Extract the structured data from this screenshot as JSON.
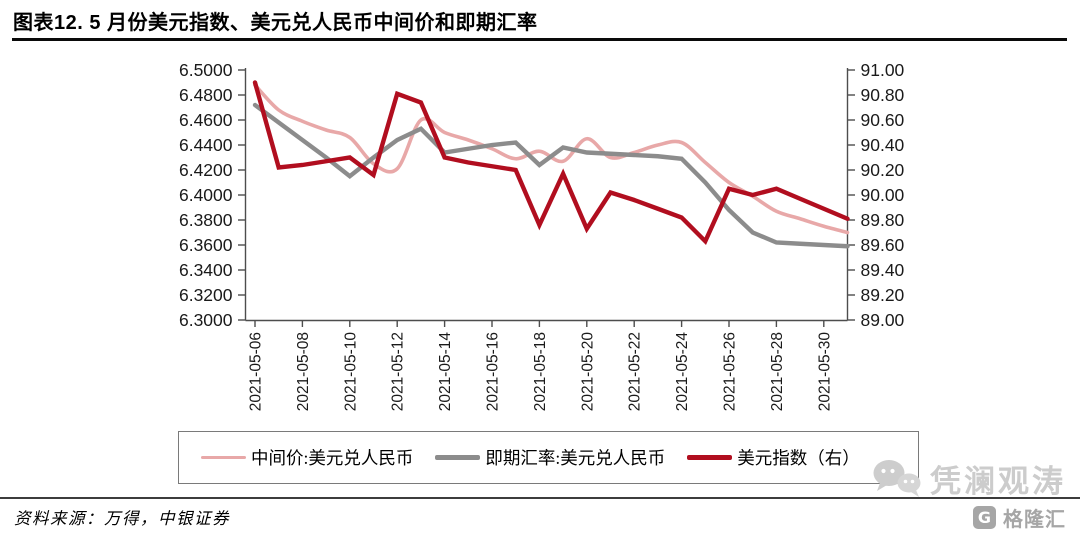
{
  "header": {
    "title": "图表12. 5 月份美元指数、美元兑人民币中间价和即期汇率"
  },
  "footer": {
    "source_label": "资料来源：万得，中银证券"
  },
  "watermark": {
    "brand": "凭澜观涛",
    "logo_letter": "G",
    "logo_text": "格隆汇",
    "brand_color": "#cccccc",
    "logo_color": "#a6a6a6"
  },
  "legend": [
    {
      "label": "中间价:美元兑人民币",
      "color": "#E8A8A8"
    },
    {
      "label": "即期汇率:美元兑人民币",
      "color": "#8C8C8C"
    },
    {
      "label": "美元指数（右）",
      "color": "#B10E1F"
    }
  ],
  "chart_data": {
    "type": "line",
    "title": "图表12. 5 月份美元指数、美元兑人民币中间价和即期汇率",
    "legend_position": "bottom",
    "grid": false,
    "dates": [
      "2021-05-06",
      "2021-05-07",
      "2021-05-08",
      "2021-05-09",
      "2021-05-10",
      "2021-05-11",
      "2021-05-12",
      "2021-05-13",
      "2021-05-14",
      "2021-05-15",
      "2021-05-16",
      "2021-05-17",
      "2021-05-18",
      "2021-05-19",
      "2021-05-20",
      "2021-05-21",
      "2021-05-22",
      "2021-05-23",
      "2021-05-24",
      "2021-05-25",
      "2021-05-26",
      "2021-05-27",
      "2021-05-28",
      "2021-05-29",
      "2021-05-30",
      "2021-05-31"
    ],
    "x_tick_labels": [
      "2021-05-06",
      "2021-05-08",
      "2021-05-10",
      "2021-05-12",
      "2021-05-14",
      "2021-05-16",
      "2021-05-18",
      "2021-05-20",
      "2021-05-22",
      "2021-05-24",
      "2021-05-26",
      "2021-05-28",
      "2021-05-30"
    ],
    "left_axis": {
      "min": 6.3,
      "max": 6.5,
      "ticks": [
        "6.5000",
        "6.4800",
        "6.4600",
        "6.4400",
        "6.4200",
        "6.4000",
        "6.3800",
        "6.3600",
        "6.3400",
        "6.3200",
        "6.3000"
      ]
    },
    "right_axis": {
      "min": 89.0,
      "max": 91.0,
      "ticks": [
        "91.00",
        "90.80",
        "90.60",
        "90.40",
        "90.20",
        "90.00",
        "89.80",
        "89.60",
        "89.40",
        "89.20",
        "89.00"
      ]
    },
    "series": [
      {
        "name": "中间价:美元兑人民币",
        "axis": "left",
        "color": "#E8A8A8",
        "smooth": true,
        "values": [
          6.488,
          6.468,
          6.459,
          6.452,
          6.446,
          6.425,
          6.421,
          6.46,
          6.45,
          6.444,
          6.437,
          6.429,
          6.435,
          6.427,
          6.445,
          6.43,
          6.434,
          6.44,
          6.442,
          6.426,
          6.41,
          6.399,
          6.387,
          6.381,
          6.375,
          6.37
        ]
      },
      {
        "name": "即期汇率:美元兑人民币",
        "axis": "left",
        "color": "#8C8C8C",
        "smooth": false,
        "values": [
          6.472,
          6.458,
          6.444,
          6.43,
          6.415,
          6.43,
          6.444,
          6.453,
          6.434,
          6.437,
          6.44,
          6.442,
          6.424,
          6.438,
          6.434,
          6.433,
          6.432,
          6.431,
          6.429,
          6.41,
          6.388,
          6.37,
          6.362,
          6.361,
          6.36,
          6.359
        ]
      },
      {
        "name": "美元指数（右）",
        "axis": "right",
        "color": "#B10E1F",
        "smooth": false,
        "values": [
          90.9,
          90.22,
          90.24,
          90.27,
          90.3,
          90.16,
          90.81,
          90.74,
          90.3,
          90.26,
          90.23,
          90.2,
          89.76,
          90.17,
          89.73,
          90.02,
          89.96,
          89.89,
          89.82,
          89.63,
          90.05,
          90.0,
          90.05,
          89.97,
          89.89,
          89.81
        ]
      }
    ]
  }
}
